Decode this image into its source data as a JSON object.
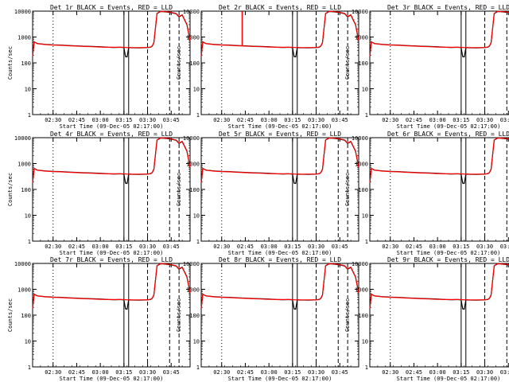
{
  "chart_data": {
    "type": "line",
    "y_scale": "log",
    "ylim": [
      1,
      10000
    ],
    "yticks": [
      {
        "value": 1,
        "label": "1"
      },
      {
        "value": 10,
        "label": "10"
      },
      {
        "value": 100,
        "label": "100"
      },
      {
        "value": 1000,
        "label": "1000"
      },
      {
        "value": 10000,
        "label": "10000"
      }
    ],
    "ylabel": "Counts/sec",
    "xlabel": "Start Time (09-Dec-05 02:17:00)",
    "xlim": [
      "02:17",
      "03:57"
    ],
    "xticks": [
      "02:30",
      "02:45",
      "03:00",
      "03:15",
      "03:30",
      "03:45"
    ],
    "series_colors": {
      "events": "#000000",
      "lld": "#ff0000"
    },
    "markers": {
      "dotted": "02:30",
      "solid": [
        "03:15",
        "03:18"
      ],
      "dashed": [
        "03:30",
        "03:44",
        "03:50"
      ]
    },
    "series": [
      {
        "name": "Events",
        "x": [
          "02:17",
          "02:18",
          "02:19",
          "02:20",
          "02:25",
          "02:30",
          "02:35",
          "02:40",
          "02:45",
          "02:50",
          "02:55",
          "03:00",
          "03:05",
          "03:08",
          "03:10",
          "03:12",
          "03:14",
          "03:15",
          "03:16",
          "03:17",
          "03:18",
          "03:20",
          "03:25",
          "03:30",
          "03:32",
          "03:33",
          "03:34",
          "03:36",
          "03:38",
          "03:40",
          "03:44",
          "03:48",
          "03:50",
          "03:52",
          "03:55",
          "03:57"
        ],
        "y": [
          180,
          650,
          600,
          560,
          520,
          500,
          490,
          470,
          455,
          440,
          430,
          420,
          400,
          395,
          395,
          400,
          395,
          390,
          175,
          170,
          390,
          385,
          380,
          390,
          405,
          450,
          600,
          8000,
          9500,
          9500,
          9000,
          8000,
          6000,
          7000,
          3000,
          700
        ]
      },
      {
        "name": "LLD",
        "x": [
          "02:17",
          "02:18",
          "02:19",
          "02:20",
          "02:25",
          "02:30",
          "02:35",
          "02:40",
          "02:45",
          "02:50",
          "02:55",
          "03:00",
          "03:05",
          "03:08",
          "03:10",
          "03:12",
          "03:14",
          "03:15",
          "03:16",
          "03:17",
          "03:18",
          "03:20",
          "03:25",
          "03:30",
          "03:32",
          "03:33",
          "03:34",
          "03:36",
          "03:38",
          "03:40",
          "03:44",
          "03:48",
          "03:50",
          "03:52",
          "03:55",
          "03:57"
        ],
        "y": [
          180,
          640,
          590,
          550,
          510,
          490,
          480,
          460,
          445,
          430,
          420,
          410,
          400,
          400,
          400,
          400,
          400,
          400,
          395,
          390,
          395,
          390,
          390,
          395,
          410,
          460,
          620,
          8200,
          9700,
          9700,
          9200,
          8200,
          6200,
          7200,
          3100,
          720
        ]
      }
    ],
    "panels": [
      {
        "title": "Det 1r BLACK = Events, RED = LLD"
      },
      {
        "title": "Det 2r BLACK = Events, RED = LLD",
        "spike_x": "02:43"
      },
      {
        "title": "Det 3r BLACK = Events, RED = LLD"
      },
      {
        "title": "Det 4r BLACK = Events, RED = LLD"
      },
      {
        "title": "Det 5r BLACK = Events, RED = LLD"
      },
      {
        "title": "Det 6r BLACK = Events, RED = LLD"
      },
      {
        "title": "Det 7r BLACK = Events, RED = LLD"
      },
      {
        "title": "Det 8r BLACK = Events, RED = LLD"
      },
      {
        "title": "Det 9r BLACK = Events, RED = LLD"
      }
    ]
  }
}
